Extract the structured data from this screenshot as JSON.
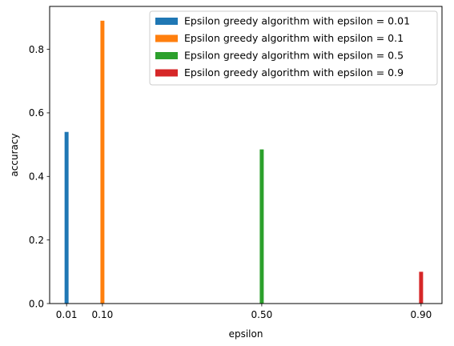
{
  "chart_data": {
    "type": "bar",
    "title": "",
    "xlabel": "epsilon",
    "ylabel": "accuracy",
    "xlim": [
      -0.0325,
      0.9525
    ],
    "ylim": [
      0,
      0.935
    ],
    "x_ticks": [
      0.01,
      0.1,
      0.5,
      0.9
    ],
    "x_tick_labels": [
      "0.01",
      "0.10",
      "0.50",
      "0.90"
    ],
    "y_ticks": [
      0.0,
      0.2,
      0.4,
      0.6,
      0.8
    ],
    "y_tick_labels": [
      "0.0",
      "0.2",
      "0.4",
      "0.6",
      "0.8"
    ],
    "bar_width": 0.01,
    "grid": false,
    "legend_position": "top-right",
    "series": [
      {
        "name": "Epsilon greedy algorithm with epsilon = 0.01",
        "x": 0.01,
        "value": 0.54,
        "color": "#1f77b4"
      },
      {
        "name": "Epsilon greedy algorithm with epsilon = 0.1",
        "x": 0.1,
        "value": 0.89,
        "color": "#ff7f0e"
      },
      {
        "name": "Epsilon greedy algorithm with epsilon = 0.5",
        "x": 0.5,
        "value": 0.485,
        "color": "#2ca02c"
      },
      {
        "name": "Epsilon greedy algorithm with epsilon = 0.9",
        "x": 0.9,
        "value": 0.1,
        "color": "#d62728"
      }
    ]
  }
}
